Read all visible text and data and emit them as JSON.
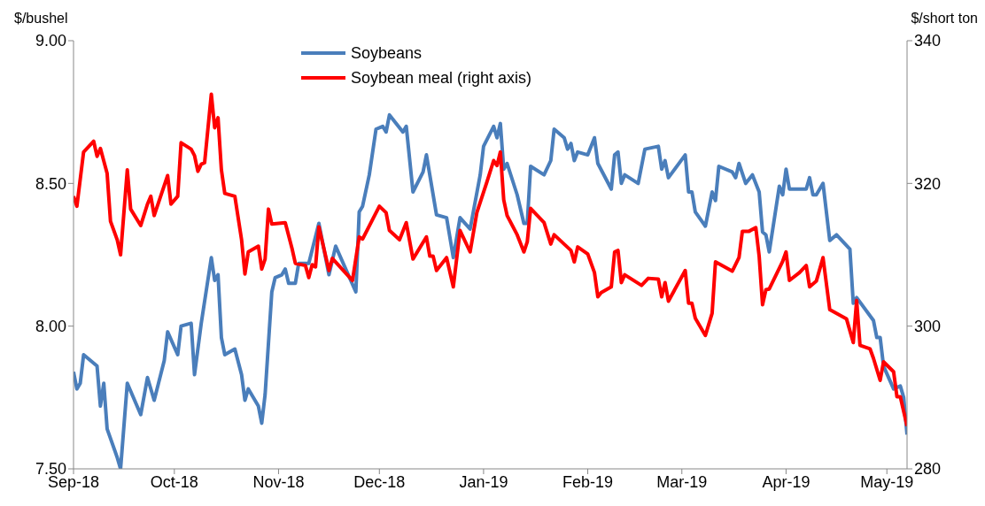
{
  "chart_data": {
    "type": "line",
    "ylabel": "$/bushel",
    "y2label": "$/short ton",
    "legend": "top",
    "marker": "none",
    "line_style": "solid",
    "grid": false,
    "xlim": [
      "2018-09-01",
      "2019-05-07"
    ],
    "xticks": [
      {
        "value": "2018-09-01",
        "label": "Sep-18"
      },
      {
        "value": "2018-10-01",
        "label": "Oct-18"
      },
      {
        "value": "2018-11-01",
        "label": "Nov-18"
      },
      {
        "value": "2018-12-01",
        "label": "Dec-18"
      },
      {
        "value": "2019-01-01",
        "label": "Jan-19"
      },
      {
        "value": "2019-02-01",
        "label": "Feb-19"
      },
      {
        "value": "2019-03-01",
        "label": "Mar-19"
      },
      {
        "value": "2019-04-01",
        "label": "Apr-19"
      },
      {
        "value": "2019-05-01",
        "label": "May-19"
      }
    ],
    "ylim": [
      7.5,
      9.0
    ],
    "yticks": [
      {
        "value": 7.5,
        "label": "7.50"
      },
      {
        "value": 8.0,
        "label": "8.00"
      },
      {
        "value": 8.5,
        "label": "8.50"
      },
      {
        "value": 9.0,
        "label": "9.00"
      }
    ],
    "y2lim": [
      280,
      340
    ],
    "y2ticks": [
      280,
      300,
      320,
      340
    ],
    "series": [
      {
        "name": "Soybeans",
        "color": "#4a7ebb",
        "x": [
          "2018-09-01",
          "2018-09-02",
          "2018-09-03",
          "2018-09-04",
          "2018-09-08",
          "2018-09-09",
          "2018-09-10",
          "2018-09-11",
          "2018-09-14",
          "2018-09-15",
          "2018-09-17",
          "2018-09-21",
          "2018-09-23",
          "2018-09-25",
          "2018-09-28",
          "2018-09-29",
          "2018-10-02",
          "2018-10-03",
          "2018-10-06",
          "2018-10-07",
          "2018-10-09",
          "2018-10-12",
          "2018-10-13",
          "2018-10-14",
          "2018-10-15",
          "2018-10-16",
          "2018-10-19",
          "2018-10-21",
          "2018-10-22",
          "2018-10-23",
          "2018-10-26",
          "2018-10-27",
          "2018-10-28",
          "2018-10-30",
          "2018-10-31",
          "2018-11-02",
          "2018-11-03",
          "2018-11-04",
          "2018-11-06",
          "2018-11-07",
          "2018-11-10",
          "2018-11-13",
          "2018-11-16",
          "2018-11-18",
          "2018-11-24",
          "2018-11-25",
          "2018-11-26",
          "2018-11-28",
          "2018-11-30",
          "2018-12-02",
          "2018-12-03",
          "2018-12-04",
          "2018-12-08",
          "2018-12-09",
          "2018-12-11",
          "2018-12-14",
          "2018-12-15",
          "2018-12-18",
          "2018-12-21",
          "2018-12-23",
          "2018-12-25",
          "2018-12-28",
          "2018-12-31",
          "2019-01-01",
          "2019-01-04",
          "2019-01-05",
          "2019-01-06",
          "2019-01-07",
          "2019-01-08",
          "2019-01-11",
          "2019-01-13",
          "2019-01-14",
          "2019-01-15",
          "2019-01-19",
          "2019-01-21",
          "2019-01-22",
          "2019-01-25",
          "2019-01-26",
          "2019-01-27",
          "2019-01-28",
          "2019-01-29",
          "2019-02-01",
          "2019-02-03",
          "2019-02-04",
          "2019-02-08",
          "2019-02-09",
          "2019-02-10",
          "2019-02-11",
          "2019-02-12",
          "2019-02-16",
          "2019-02-18",
          "2019-02-22",
          "2019-02-23",
          "2019-02-24",
          "2019-02-25",
          "2019-03-02",
          "2019-03-03",
          "2019-03-04",
          "2019-03-05",
          "2019-03-08",
          "2019-03-10",
          "2019-03-11",
          "2019-03-12",
          "2019-03-16",
          "2019-03-17",
          "2019-03-18",
          "2019-03-20",
          "2019-03-22",
          "2019-03-24",
          "2019-03-25",
          "2019-03-26",
          "2019-03-27",
          "2019-03-30",
          "2019-03-31",
          "2019-04-01",
          "2019-04-02",
          "2019-04-07",
          "2019-04-08",
          "2019-04-09",
          "2019-04-10",
          "2019-04-12",
          "2019-04-14",
          "2019-04-16",
          "2019-04-20",
          "2019-04-21",
          "2019-04-22",
          "2019-04-27",
          "2019-04-28",
          "2019-04-29",
          "2019-04-30",
          "2019-05-03",
          "2019-05-05",
          "2019-05-06",
          "2019-05-07"
        ],
        "values": [
          7.84,
          7.78,
          7.8,
          7.9,
          7.86,
          7.72,
          7.8,
          7.64,
          7.54,
          7.5,
          7.8,
          7.69,
          7.82,
          7.74,
          7.88,
          7.98,
          7.9,
          8.0,
          8.01,
          7.83,
          8.01,
          8.24,
          8.16,
          8.18,
          7.96,
          7.9,
          7.92,
          7.83,
          7.74,
          7.78,
          7.72,
          7.66,
          7.76,
          8.12,
          8.17,
          8.18,
          8.2,
          8.15,
          8.15,
          8.22,
          8.22,
          8.36,
          8.18,
          8.28,
          8.12,
          8.4,
          8.42,
          8.53,
          8.69,
          8.7,
          8.68,
          8.74,
          8.68,
          8.7,
          8.47,
          8.54,
          8.6,
          8.39,
          8.38,
          8.24,
          8.38,
          8.34,
          8.53,
          8.63,
          8.7,
          8.66,
          8.71,
          8.55,
          8.57,
          8.46,
          8.36,
          8.36,
          8.56,
          8.53,
          8.58,
          8.69,
          8.66,
          8.62,
          8.64,
          8.58,
          8.61,
          8.6,
          8.66,
          8.57,
          8.48,
          8.6,
          8.61,
          8.5,
          8.53,
          8.5,
          8.62,
          8.63,
          8.55,
          8.58,
          8.52,
          8.6,
          8.47,
          8.47,
          8.4,
          8.35,
          8.47,
          8.44,
          8.56,
          8.54,
          8.52,
          8.57,
          8.5,
          8.53,
          8.47,
          8.33,
          8.32,
          8.26,
          8.49,
          8.46,
          8.55,
          8.48,
          8.48,
          8.52,
          8.46,
          8.46,
          8.5,
          8.3,
          8.32,
          8.27,
          8.08,
          8.1,
          8.02,
          7.96,
          7.96,
          7.86,
          7.78,
          7.79,
          7.75,
          7.62
        ]
      },
      {
        "name": "Soybean meal (right axis)",
        "color": "#ff0000",
        "axis": "y2",
        "x": [
          "2018-09-01",
          "2018-09-02",
          "2018-09-04",
          "2018-09-07",
          "2018-09-08",
          "2018-09-09",
          "2018-09-11",
          "2018-09-12",
          "2018-09-14",
          "2018-09-15",
          "2018-09-17",
          "2018-09-18",
          "2018-09-21",
          "2018-09-23",
          "2018-09-24",
          "2018-09-25",
          "2018-09-29",
          "2018-09-30",
          "2018-10-02",
          "2018-10-03",
          "2018-10-06",
          "2018-10-07",
          "2018-10-08",
          "2018-10-09",
          "2018-10-10",
          "2018-10-12",
          "2018-10-13",
          "2018-10-14",
          "2018-10-15",
          "2018-10-16",
          "2018-10-19",
          "2018-10-21",
          "2018-10-22",
          "2018-10-23",
          "2018-10-26",
          "2018-10-27",
          "2018-10-28",
          "2018-10-29",
          "2018-10-30",
          "2018-11-03",
          "2018-11-05",
          "2018-11-06",
          "2018-11-09",
          "2018-11-10",
          "2018-11-11",
          "2018-11-12",
          "2018-11-13",
          "2018-11-16",
          "2018-11-17",
          "2018-11-23",
          "2018-11-25",
          "2018-11-26",
          "2018-12-01",
          "2018-12-03",
          "2018-12-04",
          "2018-12-07",
          "2018-12-09",
          "2018-12-11",
          "2018-12-15",
          "2018-12-16",
          "2018-12-17",
          "2018-12-18",
          "2018-12-21",
          "2018-12-23",
          "2018-12-25",
          "2018-12-28",
          "2018-12-30",
          "2019-01-02",
          "2019-01-04",
          "2019-01-05",
          "2019-01-06",
          "2019-01-07",
          "2019-01-08",
          "2019-01-11",
          "2019-01-13",
          "2019-01-14",
          "2019-01-15",
          "2019-01-19",
          "2019-01-21",
          "2019-01-22",
          "2019-01-27",
          "2019-01-28",
          "2019-01-29",
          "2019-02-01",
          "2019-02-03",
          "2019-02-04",
          "2019-02-05",
          "2019-02-08",
          "2019-02-09",
          "2019-02-10",
          "2019-02-11",
          "2019-02-12",
          "2019-02-17",
          "2019-02-19",
          "2019-02-22",
          "2019-02-23",
          "2019-02-24",
          "2019-02-25",
          "2019-03-02",
          "2019-03-03",
          "2019-03-04",
          "2019-03-05",
          "2019-03-08",
          "2019-03-10",
          "2019-03-11",
          "2019-03-16",
          "2019-03-18",
          "2019-03-19",
          "2019-03-21",
          "2019-03-23",
          "2019-03-24",
          "2019-03-25",
          "2019-03-26",
          "2019-03-27",
          "2019-03-31",
          "2019-04-01",
          "2019-04-02",
          "2019-04-05",
          "2019-04-07",
          "2019-04-08",
          "2019-04-10",
          "2019-04-12",
          "2019-04-14",
          "2019-04-19",
          "2019-04-21",
          "2019-04-22",
          "2019-04-23",
          "2019-04-26",
          "2019-04-27",
          "2019-04-29",
          "2019-04-30",
          "2019-05-03",
          "2019-05-04",
          "2019-05-05",
          "2019-05-07"
        ],
        "values": [
          318.2,
          316.8,
          324.4,
          325.9,
          323.8,
          324.9,
          321.4,
          314.7,
          312.1,
          310.0,
          321.9,
          316.4,
          314.1,
          317.1,
          318.2,
          315.5,
          321.1,
          317.1,
          318.2,
          325.7,
          324.8,
          323.9,
          321.7,
          322.7,
          322.9,
          332.5,
          327.8,
          329.2,
          321.9,
          318.6,
          318.2,
          312.1,
          307.3,
          310.4,
          311.2,
          308.0,
          309.4,
          316.4,
          314.3,
          314.5,
          310.9,
          308.8,
          308.5,
          306.8,
          308.6,
          308.3,
          313.9,
          307.8,
          309.5,
          306.4,
          312.5,
          312.2,
          316.8,
          315.9,
          313.4,
          312.1,
          314.5,
          309.4,
          312.5,
          309.8,
          309.8,
          307.8,
          309.6,
          305.5,
          313.4,
          310.4,
          315.9,
          320.2,
          323.2,
          322.5,
          324.4,
          317.7,
          315.5,
          312.8,
          310.4,
          311.8,
          316.5,
          314.5,
          311.5,
          312.8,
          310.6,
          309.0,
          311.1,
          310.1,
          307.5,
          304.1,
          304.7,
          305.5,
          310.4,
          310.6,
          306.1,
          307.2,
          305.7,
          306.7,
          306.6,
          304.1,
          306.1,
          303.5,
          307.8,
          303.2,
          303.2,
          301.1,
          298.7,
          301.8,
          309.0,
          307.7,
          309.6,
          313.3,
          313.3,
          313.8,
          309.8,
          303.0,
          305.1,
          305.2,
          309.1,
          310.4,
          306.4,
          307.5,
          308.5,
          305.5,
          306.3,
          309.6,
          302.3,
          301.0,
          297.7,
          303.6,
          297.3,
          296.8,
          295.5,
          292.4,
          295.0,
          293.6,
          290.1,
          290.1,
          286.0
        ]
      }
    ]
  }
}
